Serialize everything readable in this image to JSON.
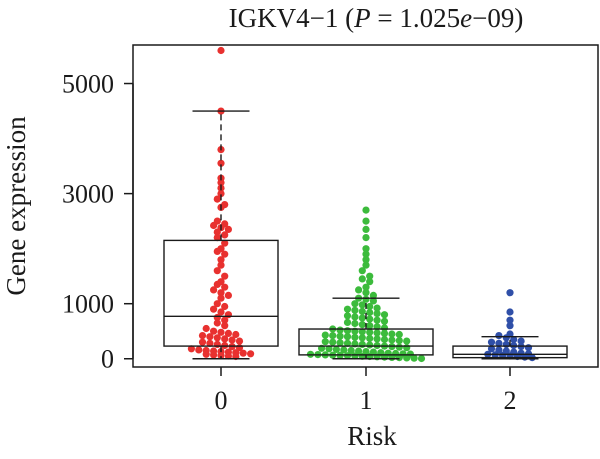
{
  "chart_data": {
    "type": "box",
    "title": "IGKV4−1 (P = 1.025e−09)",
    "title_parts": {
      "gene": "IGKV4−1 (",
      "p_symbol": "P",
      "p_equals": " = 1.025",
      "e_symbol": "e",
      "p_exp": "−09)"
    },
    "xlabel": "Risk",
    "ylabel": "Gene expression",
    "categories": [
      "0",
      "1",
      "2"
    ],
    "yticks": [
      "0",
      "1000",
      "3000",
      "5000"
    ],
    "ylim": [
      -150,
      5700
    ],
    "colors": {
      "0": "#e8312f",
      "1": "#3cbb3c",
      "2": "#2f4fa8"
    },
    "boxes": [
      {
        "category": "0",
        "whisker_low": 0,
        "q1": 230,
        "median": 770,
        "q3": 2150,
        "whisker_high": 4500
      },
      {
        "category": "1",
        "whisker_low": 0,
        "q1": 70,
        "median": 230,
        "q3": 540,
        "whisker_high": 1100
      },
      {
        "category": "2",
        "whisker_low": 0,
        "q1": 20,
        "median": 80,
        "q3": 230,
        "whisker_high": 400
      }
    ],
    "points": {
      "0": [
        5600,
        4500,
        3800,
        3550,
        3280,
        3200,
        3100,
        3000,
        2900,
        2800,
        2750,
        2500,
        2450,
        2420,
        2380,
        2350,
        2300,
        2250,
        2200,
        2100,
        2000,
        1950,
        1900,
        1800,
        1700,
        1600,
        1500,
        1400,
        1350,
        1300,
        1250,
        1200,
        1150,
        1100,
        1000,
        950,
        900,
        850,
        800,
        750,
        700,
        650,
        600,
        550,
        500,
        480,
        460,
        440,
        420,
        400,
        380,
        360,
        340,
        320,
        300,
        280,
        260,
        240,
        220,
        200,
        180,
        160,
        150,
        140,
        130,
        120,
        110,
        100,
        90,
        80,
        70,
        60,
        50,
        40
      ],
      "1": [
        2700,
        2500,
        2350,
        2200,
        2000,
        1900,
        1800,
        1700,
        1600,
        1500,
        1450,
        1400,
        1300,
        1250,
        1200,
        1150,
        1100,
        1080,
        1050,
        1000,
        980,
        950,
        920,
        900,
        880,
        860,
        840,
        820,
        800,
        780,
        760,
        740,
        720,
        700,
        680,
        660,
        640,
        620,
        600,
        580,
        560,
        540,
        520,
        510,
        500,
        490,
        480,
        470,
        460,
        450,
        440,
        430,
        420,
        410,
        400,
        390,
        380,
        370,
        360,
        350,
        340,
        330,
        320,
        310,
        300,
        290,
        280,
        270,
        260,
        250,
        240,
        230,
        220,
        210,
        200,
        190,
        180,
        170,
        160,
        150,
        140,
        130,
        120,
        110,
        100,
        95,
        90,
        85,
        80,
        75,
        70,
        65,
        60,
        55,
        50,
        45,
        40,
        35,
        30,
        25,
        20,
        15,
        10,
        5
      ],
      "2": [
        1200,
        850,
        700,
        600,
        450,
        420,
        380,
        350,
        320,
        300,
        280,
        260,
        240,
        220,
        200,
        180,
        160,
        140,
        120,
        100,
        90,
        80,
        70,
        60,
        50,
        40,
        30,
        20
      ]
    }
  }
}
